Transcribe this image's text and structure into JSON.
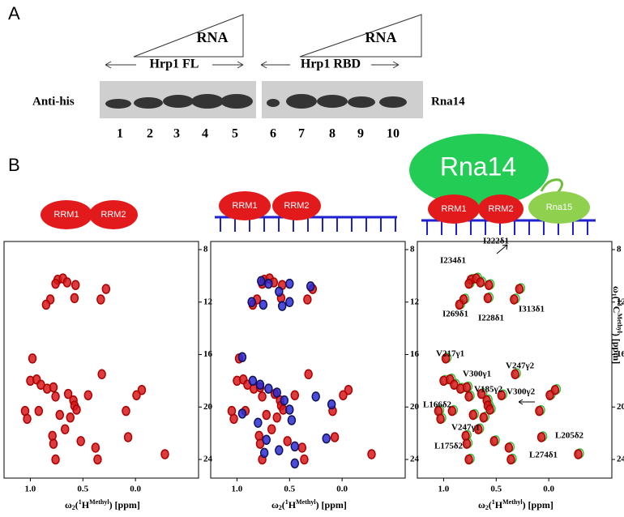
{
  "panel_a": {
    "label": "A",
    "rna": [
      "RNA",
      "RNA"
    ],
    "groups": [
      "Hrp1 FL",
      "Hrp1 RBD"
    ],
    "row_label": "Anti-his",
    "protein": "Rna14",
    "lanes": [
      "1",
      "2",
      "3",
      "4",
      "5",
      "6",
      "7",
      "8",
      "9",
      "10"
    ]
  },
  "panel_b": {
    "label": "B",
    "domains": [
      "RRM1",
      "RRM2"
    ],
    "complex": [
      "Rna14",
      "Rna15"
    ],
    "axis": {
      "x_label": [
        "ω",
        "2",
        "(",
        "1",
        "H",
        "Methyl",
        ") [ppm]"
      ],
      "y_label": [
        "ω",
        "1",
        "(",
        "13",
        "C",
        "Methyl",
        ") [ppm]"
      ],
      "xlim": [
        1.25,
        -0.6
      ],
      "ylim": [
        7.38,
        25.42
      ],
      "xticks": [
        {
          "value": 1,
          "label": "1.0"
        },
        {
          "value": 0.5,
          "label": "0.5"
        },
        {
          "value": 0,
          "label": "0.0"
        }
      ],
      "yticks": [
        8,
        12,
        16,
        20,
        24
      ]
    },
    "free_peaks": {
      "color": "#d7191c",
      "x": [
        0.74,
        0.69,
        0.76,
        0.65,
        0.57,
        0.58,
        0.28,
        0.33,
        0.81,
        0.85,
        0.98,
        0.32,
        1.0,
        0.94,
        0.9,
        0.84,
        0.78,
        0.76,
        0.64,
        0.59,
        0.58,
        0.56,
        1.05,
        1.03,
        0.92,
        0.72,
        0.62,
        0.45,
        0.09,
        -0.06,
        -0.01,
        0.79,
        0.78,
        0.67,
        0.52,
        0.38,
        0.07,
        0.76,
        0.36,
        -0.28
      ],
      "y": [
        10.3,
        10.2,
        10.6,
        10.5,
        10.7,
        11.7,
        11.0,
        11.8,
        11.8,
        12.2,
        16.3,
        17.5,
        18.0,
        17.9,
        18.3,
        18.6,
        18.5,
        19.2,
        19.0,
        19.5,
        19.9,
        20.2,
        20.3,
        20.9,
        20.3,
        20.6,
        20.8,
        19.1,
        20.3,
        18.7,
        19.1,
        22.2,
        22.8,
        21.7,
        22.6,
        23.1,
        22.3,
        24.0,
        24.0,
        23.6
      ]
    },
    "rna_peaks": {
      "color": "#2b2bd6",
      "x": [
        0.77,
        0.7,
        0.6,
        0.5,
        0.3,
        0.86,
        0.75,
        0.57,
        0.5,
        0.95,
        0.85,
        0.78,
        0.7,
        0.62,
        0.55,
        0.5,
        0.48,
        0.8,
        0.95,
        0.25,
        0.1,
        0.72,
        0.74,
        0.6,
        0.45,
        0.45,
        0.15
      ],
      "y": [
        10.4,
        10.6,
        11.2,
        10.6,
        10.8,
        12.0,
        12.2,
        12.3,
        12.0,
        16.2,
        18.0,
        18.3,
        18.6,
        18.9,
        19.5,
        20.2,
        21.0,
        21.2,
        20.5,
        19.2,
        19.8,
        22.5,
        23.5,
        23.3,
        24.3,
        23.0,
        22.4
      ]
    },
    "complex_color": "#2fbf3a",
    "assignments": [
      "I234δ1",
      "I222δ1",
      "I269δ1",
      "I228δ1",
      "I313δ1",
      "V217γ1",
      "V300γ1",
      "V247γ2",
      "V185γ2",
      "V300γ2",
      "L166δ2",
      "V247γ1",
      "L175δ2",
      "L205δ2",
      "L274δ1"
    ]
  }
}
